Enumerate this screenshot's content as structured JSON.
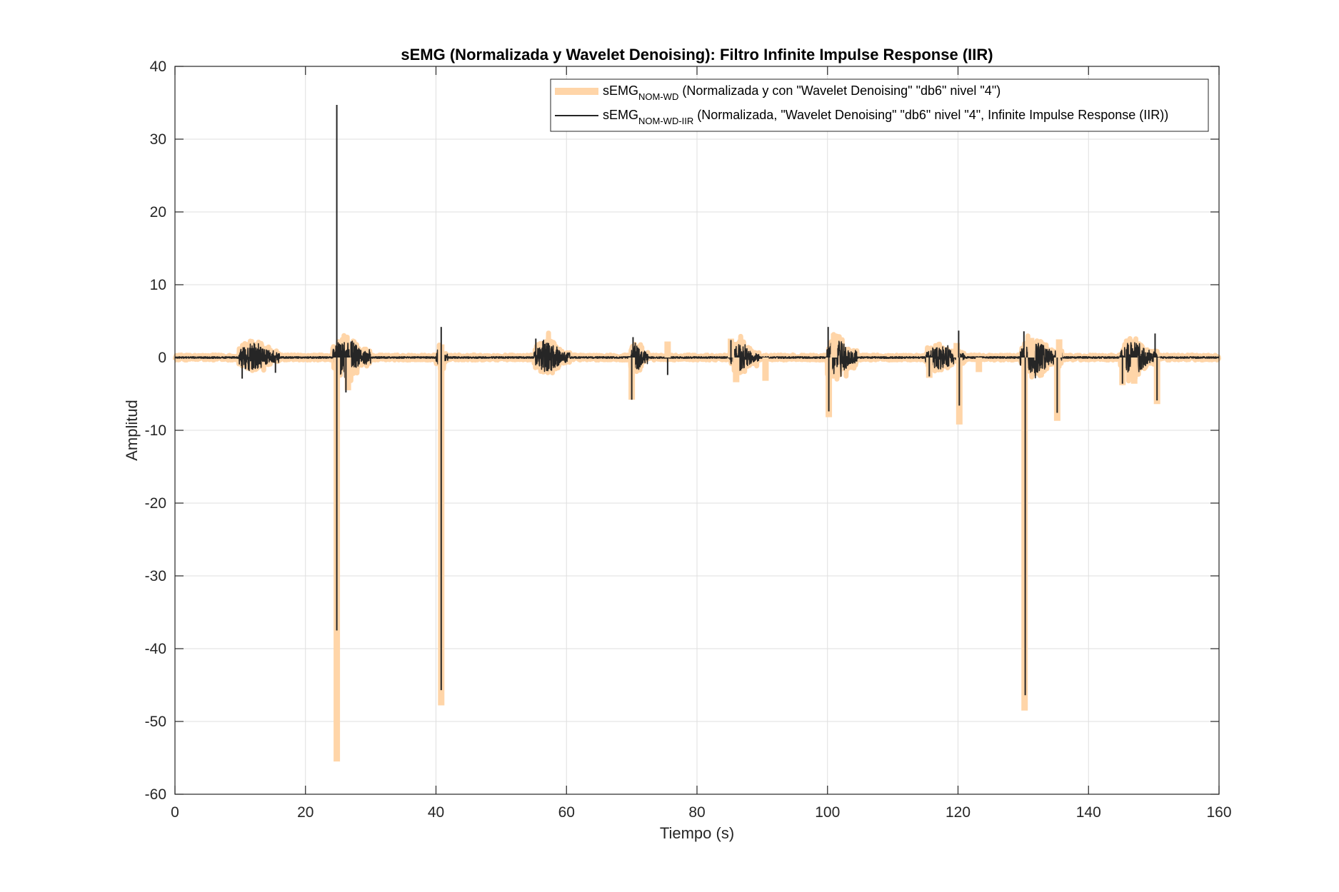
{
  "figure": {
    "title": "sEMG (Normalizada y Wavelet Denoising): Filtro Infinite Impulse Response (IIR)"
  },
  "chart_data": {
    "type": "line",
    "title": "sEMG (Normalizada y Wavelet Denoising): Filtro Infinite Impulse Response (IIR)",
    "xlabel": "Tiempo (s)",
    "ylabel": "Amplitud",
    "xlim": [
      0,
      160
    ],
    "ylim": [
      -60,
      40
    ],
    "xticks": [
      0,
      20,
      40,
      60,
      80,
      100,
      120,
      140,
      160
    ],
    "xtick_labels": [
      "0",
      "20",
      "40",
      "60",
      "80",
      "100",
      "120",
      "140",
      "160"
    ],
    "yticks": [
      40,
      30,
      20,
      10,
      0,
      -10,
      -20,
      -30,
      -40,
      -50,
      -60
    ],
    "ytick_labels": [
      "40",
      "30",
      "20",
      "10",
      "0",
      "-10",
      "-20",
      "-30",
      "-40",
      "-50",
      "-60"
    ],
    "grid": true,
    "legend_position": "top-right",
    "series": [
      {
        "name": "sEMG",
        "name_subscript": "NOM-WD",
        "name_suffix": " (Normalizada y con \"Wavelet Denoising\" \"db6\" nivel \"4\")",
        "color": "#ffd5a8",
        "style": "thick",
        "bursts": [
          {
            "t0": 9.8,
            "t1": 16.0,
            "amp": 2.6
          },
          {
            "t0": 24.2,
            "t1": 30.0,
            "amp": 3.4
          },
          {
            "t0": 40.0,
            "t1": 41.8,
            "amp": 1.8
          },
          {
            "t0": 55.0,
            "t1": 60.5,
            "amp": 2.5
          },
          {
            "t0": 69.8,
            "t1": 72.5,
            "amp": 2.4
          },
          {
            "t0": 85.0,
            "t1": 89.5,
            "amp": 2.4
          },
          {
            "t0": 99.8,
            "t1": 104.5,
            "amp": 3.0
          },
          {
            "t0": 115.0,
            "t1": 121.0,
            "amp": 2.0
          },
          {
            "t0": 129.5,
            "t1": 136.0,
            "amp": 2.8
          },
          {
            "t0": 144.8,
            "t1": 150.5,
            "amp": 2.8
          }
        ],
        "spikes": [
          {
            "t": 24.8,
            "v": -55.5
          },
          {
            "t": 26.5,
            "v": -4.5
          },
          {
            "t": 40.8,
            "v": -47.8
          },
          {
            "t": 40.8,
            "v": 1.8
          },
          {
            "t": 70.0,
            "v": -5.8
          },
          {
            "t": 75.5,
            "v": 2.2
          },
          {
            "t": 85.2,
            "v": 2.6
          },
          {
            "t": 86.0,
            "v": -3.4
          },
          {
            "t": 90.5,
            "v": -3.2
          },
          {
            "t": 100.2,
            "v": -8.2
          },
          {
            "t": 101.0,
            "v": 3.3
          },
          {
            "t": 115.6,
            "v": -2.8
          },
          {
            "t": 119.8,
            "v": 2.0
          },
          {
            "t": 120.2,
            "v": -9.2
          },
          {
            "t": 123.2,
            "v": -2.0
          },
          {
            "t": 130.2,
            "v": -48.5
          },
          {
            "t": 131.2,
            "v": 2.7
          },
          {
            "t": 135.2,
            "v": -8.7
          },
          {
            "t": 135.5,
            "v": 2.5
          },
          {
            "t": 145.2,
            "v": -3.8
          },
          {
            "t": 147.0,
            "v": -3.6
          },
          {
            "t": 150.5,
            "v": -6.4
          }
        ]
      },
      {
        "name": "sEMG",
        "name_subscript": "NOM-WD-IIR",
        "name_suffix": " (Normalizada, \"Wavelet Denoising\" \"db6\" nivel \"4\", Infinite Impulse Response (IIR))",
        "color": "#262626",
        "style": "thin",
        "bursts": [
          {
            "t0": 9.8,
            "t1": 16.0,
            "amp": 2.0
          },
          {
            "t0": 24.2,
            "t1": 30.0,
            "amp": 2.6
          },
          {
            "t0": 40.0,
            "t1": 41.8,
            "amp": 1.4
          },
          {
            "t0": 55.0,
            "t1": 60.5,
            "amp": 2.0
          },
          {
            "t0": 69.8,
            "t1": 72.5,
            "amp": 1.8
          },
          {
            "t0": 85.0,
            "t1": 89.5,
            "amp": 1.8
          },
          {
            "t0": 99.8,
            "t1": 104.5,
            "amp": 2.4
          },
          {
            "t0": 115.0,
            "t1": 121.0,
            "amp": 1.6
          },
          {
            "t0": 129.5,
            "t1": 136.0,
            "amp": 2.2
          },
          {
            "t0": 144.8,
            "t1": 150.5,
            "amp": 2.2
          }
        ],
        "spikes": [
          {
            "t": 10.3,
            "v": -2.9
          },
          {
            "t": 15.4,
            "v": -2.1
          },
          {
            "t": 24.8,
            "v": 34.7
          },
          {
            "t": 24.8,
            "v": -37.5
          },
          {
            "t": 26.2,
            "v": -4.8
          },
          {
            "t": 40.8,
            "v": 4.2
          },
          {
            "t": 40.8,
            "v": -45.7
          },
          {
            "t": 55.3,
            "v": 2.6
          },
          {
            "t": 70.0,
            "v": -5.8
          },
          {
            "t": 70.2,
            "v": 2.8
          },
          {
            "t": 75.5,
            "v": -2.4
          },
          {
            "t": 85.2,
            "v": 2.4
          },
          {
            "t": 100.1,
            "v": 4.2
          },
          {
            "t": 100.2,
            "v": -7.4
          },
          {
            "t": 115.6,
            "v": -2.6
          },
          {
            "t": 120.1,
            "v": 3.7
          },
          {
            "t": 120.2,
            "v": -6.6
          },
          {
            "t": 130.1,
            "v": 3.6
          },
          {
            "t": 130.3,
            "v": -46.4
          },
          {
            "t": 135.2,
            "v": -7.6
          },
          {
            "t": 145.2,
            "v": -3.6
          },
          {
            "t": 150.2,
            "v": 3.3
          },
          {
            "t": 150.5,
            "v": -5.9
          }
        ]
      }
    ]
  }
}
